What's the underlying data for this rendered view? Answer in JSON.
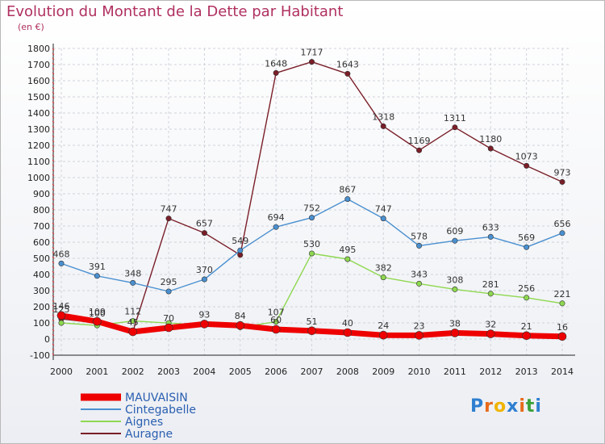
{
  "title": "Evolution du Montant de la Dette par Habitant",
  "subtitle": "(en €)",
  "logo": {
    "text": "Proxiti",
    "colors": [
      "#2e7fd0",
      "#e86a1a",
      "#f0b400",
      "#2e7fd0",
      "#e86a1a",
      "#3aa03a",
      "#2e7fd0"
    ]
  },
  "chart_data": {
    "type": "line",
    "x": [
      "2000",
      "2001",
      "2002",
      "2003",
      "2004",
      "2005",
      "2006",
      "2007",
      "2008",
      "2009",
      "2010",
      "2011",
      "2012",
      "2013",
      "2014"
    ],
    "ylim": [
      -100,
      1800
    ],
    "yticks": [
      "-100",
      "0",
      "100",
      "200",
      "300",
      "400",
      "500",
      "600",
      "700",
      "800",
      "900",
      "1000",
      "1100",
      "1200",
      "1300",
      "1400",
      "1500",
      "1600",
      "1700",
      "1800"
    ],
    "grid": true,
    "legend_position": "bottom-left",
    "series": [
      {
        "name": "Auragne",
        "color": "#7a1e28",
        "values": [
          125,
          100,
          46,
          747,
          657,
          521,
          1648,
          1717,
          1643,
          1318,
          1169,
          1311,
          1180,
          1073,
          973
        ],
        "labels": [
          "125",
          "100",
          "",
          "747",
          "657",
          "",
          "1648",
          "1717",
          "1643",
          "1318",
          "1169",
          "1311",
          "1180",
          "1073",
          "973"
        ]
      },
      {
        "name": "Cintegabelle",
        "color": "#4a90d0",
        "values": [
          468,
          391,
          348,
          295,
          370,
          549,
          694,
          752,
          867,
          747,
          578,
          609,
          633,
          569,
          656
        ],
        "labels": [
          "468",
          "391",
          "348",
          "295",
          "370",
          "549",
          "694",
          "752",
          "867",
          "747",
          "578",
          "609",
          "633",
          "569",
          "656"
        ]
      },
      {
        "name": "Aignes",
        "color": "#8ed850",
        "values": [
          100,
          84,
          112,
          99,
          86,
          73,
          107,
          530,
          495,
          382,
          343,
          308,
          281,
          256,
          221
        ],
        "labels": [
          "",
          "",
          "112",
          "",
          "",
          "",
          "107",
          "530",
          "495",
          "382",
          "343",
          "308",
          "281",
          "256",
          "221"
        ]
      },
      {
        "name": "MAUVAISIN",
        "color": "#ee0000",
        "values": [
          146,
          109,
          45,
          70,
          93,
          84,
          60,
          51,
          40,
          24,
          23,
          38,
          32,
          21,
          16
        ],
        "labels": [
          "146",
          "109",
          "45",
          "70",
          "93",
          "84",
          "60",
          "51",
          "40",
          "24",
          "23",
          "38",
          "32",
          "21",
          "16"
        ]
      }
    ],
    "legend_order": [
      "MAUVAISIN",
      "Cintegabelle",
      "Aignes",
      "Auragne"
    ]
  }
}
